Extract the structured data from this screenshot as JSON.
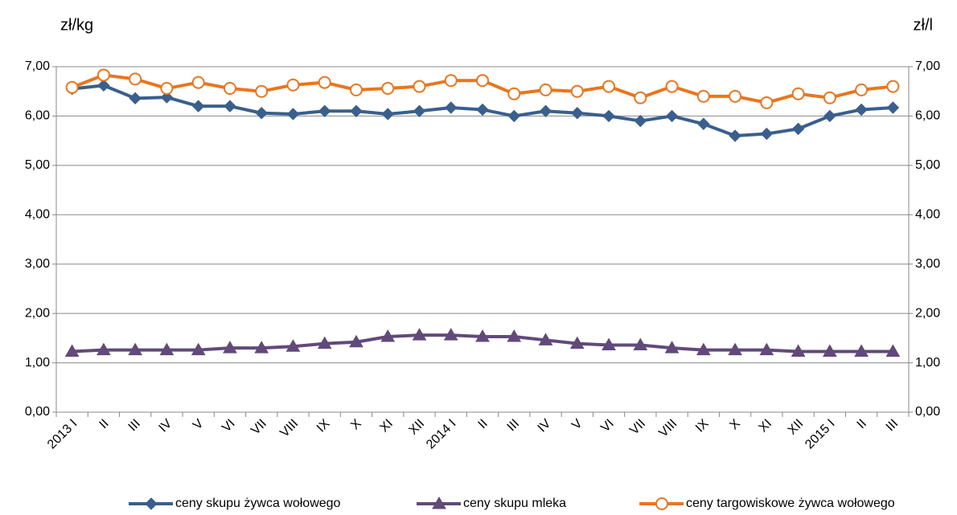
{
  "chart_data": {
    "type": "line",
    "y_label": "zł/kg",
    "y2_label": "zł/l",
    "categories": [
      "2013 I",
      "II",
      "III",
      "IV",
      "V",
      "VI",
      "VII",
      "VIII",
      "IX",
      "X",
      "XI",
      "XII",
      "2014 I",
      "II",
      "III",
      "IV",
      "V",
      "VI",
      "VII",
      "VIII",
      "IX",
      "X",
      "XI",
      "XII",
      "2015 I",
      "II",
      "III"
    ],
    "series": [
      {
        "name": "ceny skupu żywca wołowego",
        "color": "#3a5f8c",
        "marker": "diamond",
        "values": [
          6.55,
          6.62,
          6.36,
          6.38,
          6.2,
          6.2,
          6.06,
          6.04,
          6.1,
          6.1,
          6.04,
          6.1,
          6.17,
          6.13,
          6.0,
          6.1,
          6.06,
          6.0,
          5.9,
          6.0,
          5.84,
          5.6,
          5.64,
          5.74,
          6.0,
          6.13,
          6.17
        ]
      },
      {
        "name": "ceny skupu mleka",
        "color": "#614a7a",
        "marker": "triangle",
        "values": [
          1.23,
          1.26,
          1.26,
          1.26,
          1.26,
          1.3,
          1.3,
          1.33,
          1.39,
          1.42,
          1.53,
          1.56,
          1.56,
          1.53,
          1.53,
          1.46,
          1.39,
          1.36,
          1.36,
          1.3,
          1.26,
          1.26,
          1.26,
          1.23,
          1.23,
          1.23,
          1.23
        ]
      },
      {
        "name": "ceny targowiskowe żywca wołowego",
        "color": "#e8761f",
        "marker": "circle",
        "values": [
          6.58,
          6.83,
          6.75,
          6.56,
          6.68,
          6.56,
          6.5,
          6.63,
          6.68,
          6.53,
          6.56,
          6.6,
          6.72,
          6.72,
          6.45,
          6.53,
          6.5,
          6.6,
          6.37,
          6.6,
          6.4,
          6.4,
          6.27,
          6.45,
          6.37,
          6.53,
          6.6
        ]
      }
    ],
    "ylim": [
      0,
      7
    ],
    "yticks": [
      {
        "value": 0,
        "label": "0,00"
      },
      {
        "value": 1,
        "label": "1,00"
      },
      {
        "value": 2,
        "label": "2,00"
      },
      {
        "value": 3,
        "label": "3,00"
      },
      {
        "value": 4,
        "label": "4,00"
      },
      {
        "value": 5,
        "label": "5,00"
      },
      {
        "value": 6,
        "label": "6,00"
      },
      {
        "value": 7,
        "label": "7,00"
      }
    ],
    "y2lim": [
      0,
      7
    ],
    "y2ticks": [
      {
        "value": 0,
        "label": "0,00"
      },
      {
        "value": 1,
        "label": "1,00"
      },
      {
        "value": 2,
        "label": "2,00"
      },
      {
        "value": 3,
        "label": "3,00"
      },
      {
        "value": 4,
        "label": "4,00"
      },
      {
        "value": 5,
        "label": "5,00"
      },
      {
        "value": 6,
        "label": "6,00"
      },
      {
        "value": 7,
        "label": "7,00"
      }
    ],
    "grid": true,
    "legend": "bottom"
  }
}
